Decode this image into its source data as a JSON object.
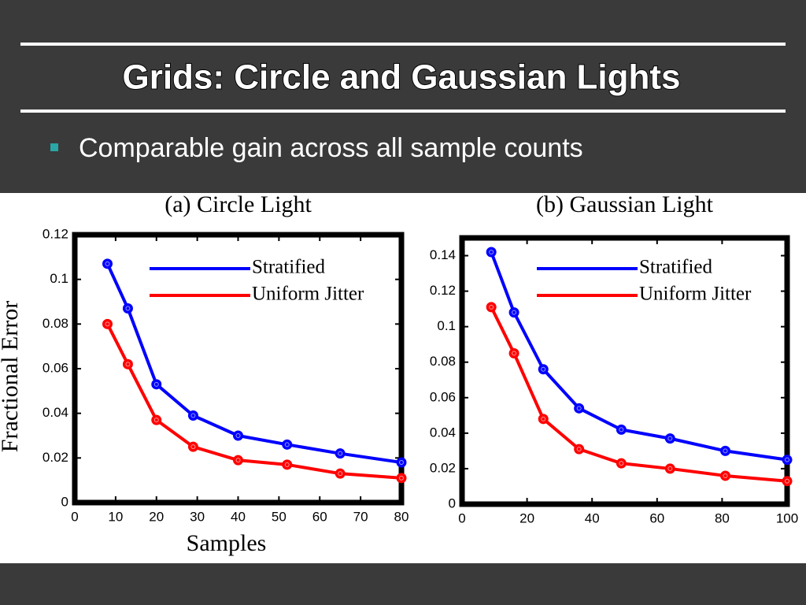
{
  "title": "Grids: Circle and Gaussian Lights",
  "bullets": [
    "Comparable gain across all sample counts"
  ],
  "chart_data": [
    {
      "type": "line",
      "title": "(a) Circle Light",
      "xlabel": "Samples",
      "ylabel": "Fractional Error",
      "x": [
        8,
        13,
        20,
        29,
        40,
        52,
        65,
        80
      ],
      "series": [
        {
          "name": "Stratified",
          "color": "#0000ff",
          "values": [
            0.107,
            0.087,
            0.053,
            0.039,
            0.03,
            0.026,
            0.022,
            0.018
          ]
        },
        {
          "name": "Uniform Jitter",
          "color": "#ff0000",
          "values": [
            0.08,
            0.062,
            0.037,
            0.025,
            0.019,
            0.017,
            0.013,
            0.011
          ]
        }
      ],
      "xlim": [
        0,
        80
      ],
      "xticks": [
        0,
        10,
        20,
        30,
        40,
        50,
        60,
        70,
        80
      ],
      "ylim": [
        0,
        0.12
      ],
      "yticks": [
        0,
        0.02,
        0.04,
        0.06,
        0.08,
        0.1,
        0.12
      ]
    },
    {
      "type": "line",
      "title": "(b) Gaussian Light",
      "x": [
        9,
        16,
        25,
        36,
        49,
        64,
        81,
        100
      ],
      "series": [
        {
          "name": "Stratified",
          "color": "#0000ff",
          "values": [
            0.142,
            0.108,
            0.076,
            0.054,
            0.042,
            0.037,
            0.03,
            0.025
          ]
        },
        {
          "name": "Uniform Jitter",
          "color": "#ff0000",
          "values": [
            0.111,
            0.085,
            0.048,
            0.031,
            0.023,
            0.02,
            0.016,
            0.013
          ]
        }
      ],
      "xlim": [
        0,
        100
      ],
      "xticks": [
        0,
        20,
        40,
        60,
        80,
        100
      ],
      "ylim": [
        0,
        0.15
      ],
      "yticks": [
        0,
        0.02,
        0.04,
        0.06,
        0.08,
        0.1,
        0.12,
        0.14
      ]
    }
  ]
}
